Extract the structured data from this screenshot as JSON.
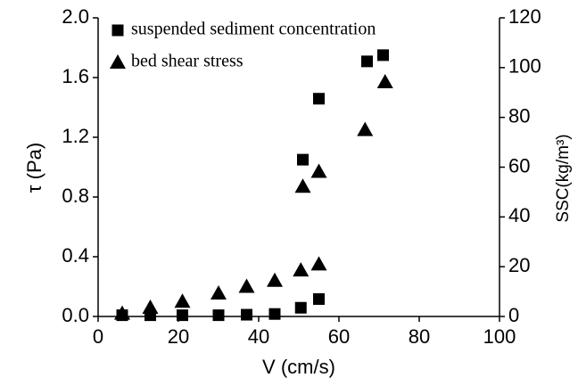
{
  "chart_data": {
    "type": "scatter",
    "x_label": "V (cm/s)",
    "y_label": "τ (Pa)",
    "y2_label": "SSC(kg/m³)",
    "xlim": [
      0,
      100
    ],
    "xticks": [
      0,
      20,
      40,
      60,
      80,
      100
    ],
    "ylim": [
      0,
      2
    ],
    "yticks": [
      {
        "value": 0,
        "label": "0.0"
      },
      0.4,
      0.8,
      1.2,
      1.6,
      {
        "value": 2,
        "label": "2.0"
      }
    ],
    "y2lim": [
      0,
      120
    ],
    "y2ticks": [
      0,
      20,
      40,
      60,
      80,
      100,
      120
    ],
    "legend": "top-left",
    "series": [
      {
        "name": "suspended sediment concentration",
        "marker": "square",
        "color": "#000000",
        "axis": "y2",
        "x": [
          6,
          13,
          21,
          30,
          37,
          44,
          50.5,
          55,
          51,
          55,
          67,
          71
        ],
        "values": [
          0.5,
          0.5,
          0.5,
          0.5,
          0.7,
          1,
          3.5,
          7,
          63,
          87.5,
          102.5,
          105
        ]
      },
      {
        "name": "bed shear stress",
        "marker": "triangle",
        "color": "#000000",
        "axis": "y",
        "x": [
          6,
          13,
          21,
          30,
          37,
          44,
          50.5,
          55,
          51,
          55,
          66.5,
          71.5
        ],
        "values": [
          0.02,
          0.06,
          0.1,
          0.155,
          0.2,
          0.24,
          0.31,
          0.35,
          0.87,
          0.97,
          1.25,
          1.57
        ]
      }
    ]
  }
}
